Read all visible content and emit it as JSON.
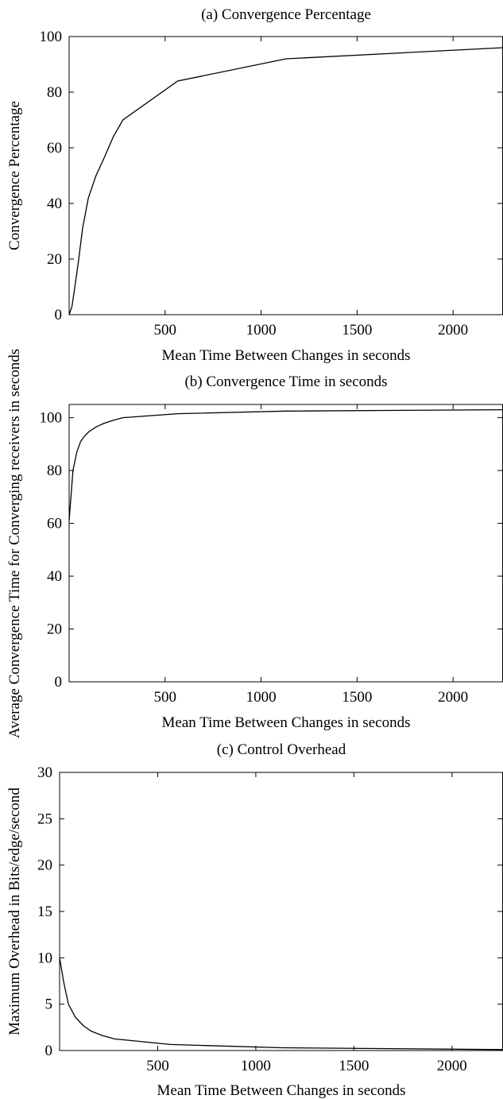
{
  "chart_data": [
    {
      "type": "line",
      "title": "(a) Convergence Percentage",
      "xlabel": "Mean Time Between Changes in seconds",
      "ylabel": "Convergence Percentage",
      "xlim": [
        0,
        2260
      ],
      "ylim": [
        0,
        100
      ],
      "x_ticks": [
        500,
        1000,
        1500,
        2000
      ],
      "y_ticks": [
        0,
        20,
        40,
        60,
        80,
        100
      ],
      "grid": false,
      "series": [
        {
          "x": [
            0,
            15,
            30,
            50,
            70,
            100,
            140,
            180,
            230,
            280,
            565,
            1130,
            2260
          ],
          "y": [
            0,
            3,
            10,
            20,
            31,
            42,
            50,
            56,
            64,
            70,
            84,
            92,
            96
          ]
        }
      ]
    },
    {
      "type": "line",
      "title": "(b) Convergence Time in seconds",
      "xlabel": "Mean Time Between Changes in seconds",
      "ylabel": "Average Convergence Time for Converging receivers in seconds",
      "xlim": [
        0,
        2260
      ],
      "ylim": [
        0,
        105
      ],
      "x_ticks": [
        500,
        1000,
        1500,
        2000
      ],
      "y_ticks": [
        0,
        20,
        40,
        60,
        80,
        100
      ],
      "grid": false,
      "series": [
        {
          "x": [
            0,
            20,
            40,
            60,
            80,
            100,
            140,
            180,
            230,
            280,
            565,
            1130,
            2260
          ],
          "y": [
            61,
            80,
            87,
            91,
            93,
            94.5,
            96.5,
            97.8,
            99,
            100,
            101.5,
            102.5,
            103
          ]
        }
      ]
    },
    {
      "type": "line",
      "title": "(c) Control Overhead",
      "xlabel": "Mean Time Between Changes in seconds",
      "ylabel": "Maximum Overhead in Bits/edge/second",
      "xlim": [
        0,
        2260
      ],
      "ylim": [
        0,
        30
      ],
      "x_ticks": [
        500,
        1000,
        1500,
        2000
      ],
      "y_ticks": [
        0,
        5,
        10,
        15,
        20,
        25,
        30
      ],
      "grid": false,
      "series": [
        {
          "x": [
            0,
            20,
            45,
            80,
            120,
            160,
            220,
            280,
            565,
            1130,
            2260
          ],
          "y": [
            10,
            7.5,
            5,
            3.6,
            2.7,
            2.1,
            1.6,
            1.25,
            0.65,
            0.3,
            0.1
          ]
        }
      ]
    }
  ]
}
